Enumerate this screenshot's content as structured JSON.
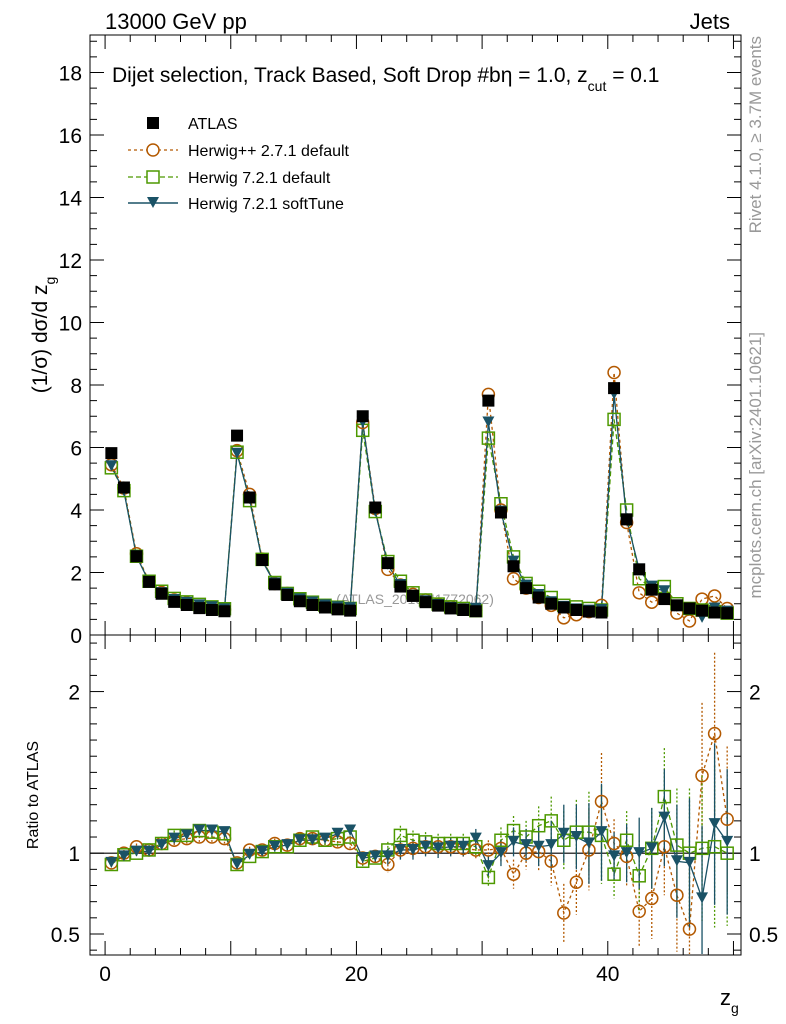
{
  "header": {
    "left": "13000 GeV pp",
    "right": "Jets"
  },
  "side_labels": {
    "rivet": "Rivet 4.1.0, ≥ 3.7M events",
    "mcplots": "mcplots.cern.ch [arXiv:2401.10621]"
  },
  "watermark": "(ATLAS_2019_I1772062)",
  "chart_data": [
    {
      "type": "scatter",
      "panel": "main",
      "title": "Dijet selection, Track Based, Soft Drop #b",
      "title_suffix": "η = 1.0, z",
      "title_sub": "cut",
      "title_end": " = 0.1",
      "ylabel": "(1/σ) dσ/d z",
      "ylabel_sub": "g",
      "ylim": [
        0,
        19.2
      ],
      "yticks": [
        0,
        2,
        4,
        6,
        8,
        10,
        12,
        14,
        16,
        18
      ],
      "ytick_labels": [
        "0",
        "2",
        "4",
        "6",
        "8",
        "10",
        "12",
        "14",
        "16",
        "18"
      ],
      "legend_placement": "top-left",
      "series": [
        {
          "name": "ATLAS",
          "color": "#000000",
          "marker": "square-filled",
          "values": [
            5.82,
            4.72,
            2.52,
            1.7,
            1.32,
            1.06,
            0.96,
            0.86,
            0.8,
            0.76,
            6.38,
            4.4,
            2.4,
            1.62,
            1.28,
            1.08,
            0.96,
            0.88,
            0.82,
            0.78,
            7.0,
            4.08,
            2.3,
            1.55,
            1.25,
            1.05,
            0.94,
            0.85,
            0.8,
            0.76,
            7.5,
            3.92,
            2.2,
            1.5,
            1.2,
            1.0,
            0.88,
            0.8,
            0.75,
            0.72,
            7.9,
            3.7,
            2.1,
            1.45,
            1.15,
            0.95,
            0.85,
            0.78,
            0.72,
            0.7
          ]
        },
        {
          "name": "Herwig++ 2.7.1 default",
          "color": "#b35900",
          "marker": "circle-open",
          "values": [
            5.45,
            4.7,
            2.6,
            1.72,
            1.36,
            1.12,
            1.03,
            0.92,
            0.86,
            0.81,
            5.9,
            4.5,
            2.43,
            1.65,
            1.33,
            1.15,
            1.03,
            0.94,
            0.87,
            0.83,
            6.8,
            4.05,
            2.1,
            1.6,
            1.3,
            1.12,
            0.98,
            0.9,
            0.83,
            0.79,
            7.7,
            4.0,
            1.8,
            1.5,
            1.2,
            0.95,
            0.55,
            0.65,
            0.75,
            0.95,
            8.4,
            3.6,
            1.35,
            1.05,
            1.2,
            0.7,
            0.45,
            1.15,
            1.25,
            0.85
          ]
        },
        {
          "name": "Herwig 7.2.1 default",
          "color": "#4d9900",
          "marker": "square-open",
          "values": [
            5.35,
            4.62,
            2.52,
            1.72,
            1.4,
            1.17,
            1.06,
            0.98,
            0.9,
            0.84,
            5.85,
            4.3,
            2.42,
            1.68,
            1.33,
            1.16,
            1.05,
            0.95,
            0.89,
            0.85,
            6.55,
            3.95,
            2.35,
            1.72,
            1.35,
            1.12,
            0.99,
            0.9,
            0.85,
            0.78,
            6.3,
            4.2,
            2.5,
            1.65,
            1.4,
            1.2,
            0.95,
            0.9,
            0.85,
            0.8,
            6.9,
            4.0,
            1.8,
            1.5,
            1.55,
            1.0,
            0.85,
            0.8,
            0.75,
            0.7
          ]
        },
        {
          "name": "Herwig 7.2.1 softTune",
          "color": "#1a5266",
          "marker": "triangle-down-filled",
          "values": [
            5.4,
            4.6,
            2.52,
            1.7,
            1.34,
            1.12,
            1.03,
            0.95,
            0.89,
            0.82,
            5.8,
            4.35,
            2.38,
            1.65,
            1.32,
            1.14,
            1.04,
            0.95,
            0.89,
            0.86,
            6.8,
            3.95,
            2.25,
            1.6,
            1.26,
            1.08,
            0.96,
            0.87,
            0.82,
            0.84,
            6.8,
            3.95,
            2.35,
            1.58,
            1.28,
            1.05,
            0.9,
            0.82,
            0.78,
            0.8,
            7.7,
            3.7,
            2.1,
            1.55,
            1.4,
            0.9,
            0.8,
            0.55,
            0.85,
            0.75
          ]
        }
      ],
      "x": [
        0.5,
        1.5,
        2.5,
        3.5,
        4.5,
        5.5,
        6.5,
        7.5,
        8.5,
        9.5,
        10.5,
        11.5,
        12.5,
        13.5,
        14.5,
        15.5,
        16.5,
        17.5,
        18.5,
        19.5,
        20.5,
        21.5,
        22.5,
        23.5,
        24.5,
        25.5,
        26.5,
        27.5,
        28.5,
        29.5,
        30.5,
        31.5,
        32.5,
        33.5,
        34.5,
        35.5,
        36.5,
        37.5,
        38.5,
        39.5,
        40.5,
        41.5,
        42.5,
        43.5,
        44.5,
        45.5,
        46.5,
        47.5,
        48.5,
        49.5
      ]
    },
    {
      "type": "scatter",
      "panel": "ratio",
      "ylabel": "Ratio to ATLAS",
      "xlabel": "z",
      "xlabel_sub": "g",
      "xlim": [
        -1.2,
        50.6
      ],
      "xticks": [
        0,
        20,
        40
      ],
      "xtick_labels": [
        "0",
        "20",
        "40"
      ],
      "ylim": [
        0.37,
        2.35
      ],
      "yticks": [
        0.5,
        1,
        2
      ],
      "ytick_labels": [
        "0.5",
        "1",
        "2"
      ],
      "reference_line": 1,
      "series": [
        {
          "name": "Herwig++ 2.7.1 default",
          "color": "#b35900",
          "values": [
            0.94,
            1.0,
            1.04,
            1.02,
            1.06,
            1.08,
            1.09,
            1.1,
            1.1,
            1.09,
            0.94,
            1.02,
            1.02,
            1.06,
            1.05,
            1.09,
            1.09,
            1.08,
            1.07,
            1.06,
            0.97,
            0.98,
            0.93,
            1.02,
            1.03,
            1.04,
            1.04,
            1.04,
            1.03,
            1.02,
            1.02,
            1.03,
            0.87,
            1.0,
            1.01,
            0.95,
            0.63,
            0.82,
            1.02,
            1.32,
            1.06,
            0.98,
            0.64,
            0.72,
            1.04,
            0.74,
            0.53,
            1.48,
            1.74,
            1.21
          ],
          "errors": [
            0.02,
            0.02,
            0.02,
            0.03,
            0.03,
            0.03,
            0.03,
            0.03,
            0.03,
            0.03,
            0.02,
            0.02,
            0.02,
            0.03,
            0.03,
            0.03,
            0.03,
            0.03,
            0.03,
            0.03,
            0.03,
            0.04,
            0.05,
            0.06,
            0.06,
            0.06,
            0.06,
            0.06,
            0.06,
            0.06,
            0.06,
            0.08,
            0.09,
            0.1,
            0.12,
            0.15,
            0.18,
            0.2,
            0.25,
            0.3,
            0.15,
            0.18,
            0.22,
            0.25,
            0.3,
            0.35,
            0.4,
            0.45,
            0.5,
            0.45
          ]
        },
        {
          "name": "Herwig 7.2.1 default",
          "color": "#4d9900",
          "values": [
            0.93,
            0.99,
            1.0,
            1.02,
            1.06,
            1.11,
            1.11,
            1.14,
            1.13,
            1.12,
            0.93,
            0.98,
            1.01,
            1.04,
            1.04,
            1.08,
            1.1,
            1.08,
            1.09,
            1.1,
            0.95,
            0.97,
            1.02,
            1.11,
            1.08,
            1.07,
            1.06,
            1.06,
            1.06,
            1.04,
            0.85,
            1.08,
            1.14,
            1.1,
            1.17,
            1.2,
            1.08,
            1.13,
            1.13,
            1.11,
            0.87,
            1.08,
            0.86,
            1.03,
            1.35,
            1.05,
            1.0,
            1.03,
            1.04,
            1.0
          ],
          "errors": [
            0.02,
            0.02,
            0.02,
            0.03,
            0.03,
            0.03,
            0.03,
            0.03,
            0.03,
            0.03,
            0.02,
            0.02,
            0.02,
            0.03,
            0.03,
            0.03,
            0.03,
            0.03,
            0.03,
            0.03,
            0.03,
            0.04,
            0.05,
            0.06,
            0.06,
            0.06,
            0.06,
            0.06,
            0.06,
            0.06,
            0.06,
            0.08,
            0.09,
            0.1,
            0.12,
            0.15,
            0.18,
            0.2,
            0.25,
            0.3,
            0.15,
            0.18,
            0.22,
            0.25,
            0.3,
            0.35,
            0.4,
            0.45,
            0.5,
            0.45
          ]
        },
        {
          "name": "Herwig 7.2.1 softTune",
          "color": "#1a5266",
          "values": [
            0.94,
            0.98,
            1.01,
            1.01,
            1.05,
            1.09,
            1.11,
            1.14,
            1.14,
            1.13,
            0.93,
            0.99,
            1.01,
            1.04,
            1.05,
            1.08,
            1.08,
            1.09,
            1.12,
            1.14,
            0.97,
            0.98,
            0.98,
            1.02,
            1.02,
            1.04,
            1.03,
            1.04,
            1.04,
            1.09,
            0.92,
            1.0,
            1.07,
            1.05,
            1.04,
            1.05,
            1.12,
            1.1,
            1.06,
            1.13,
            0.98,
            1.0,
            1.0,
            1.03,
            1.22,
            0.95,
            0.94,
            0.72,
            1.18,
            1.07
          ],
          "errors": [
            0.02,
            0.02,
            0.02,
            0.03,
            0.03,
            0.03,
            0.03,
            0.03,
            0.03,
            0.03,
            0.02,
            0.02,
            0.02,
            0.03,
            0.03,
            0.03,
            0.03,
            0.03,
            0.03,
            0.03,
            0.03,
            0.04,
            0.05,
            0.06,
            0.06,
            0.06,
            0.06,
            0.06,
            0.06,
            0.06,
            0.06,
            0.08,
            0.09,
            0.1,
            0.12,
            0.15,
            0.18,
            0.2,
            0.25,
            0.3,
            0.15,
            0.18,
            0.22,
            0.25,
            0.3,
            0.35,
            0.4,
            0.45,
            0.5,
            0.45
          ]
        }
      ]
    }
  ]
}
